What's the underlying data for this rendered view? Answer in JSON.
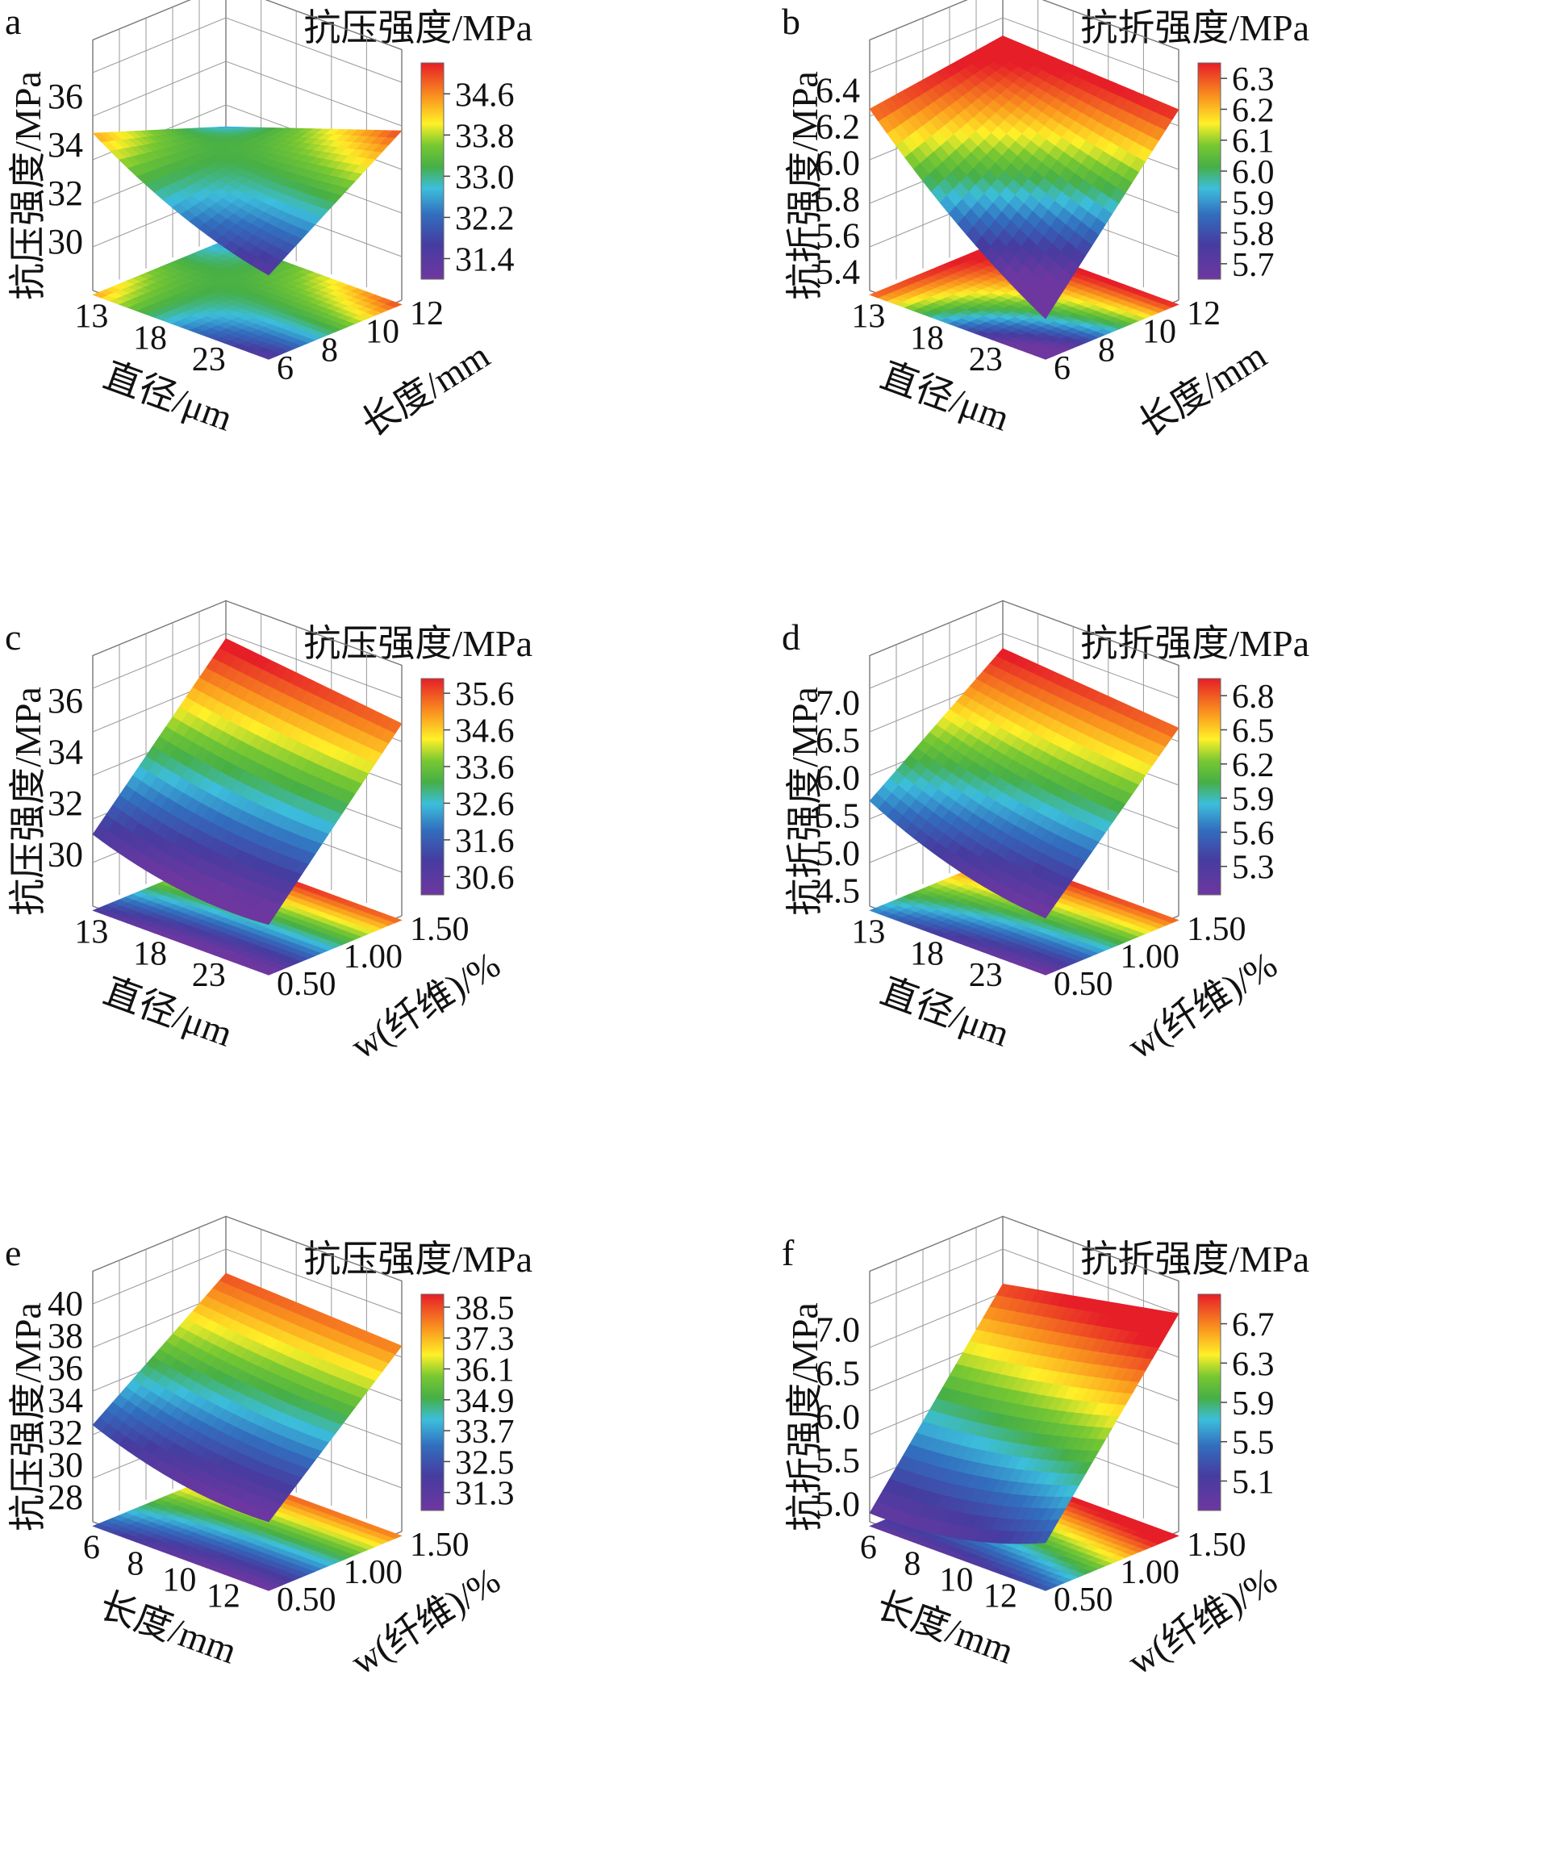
{
  "chart_data": [
    {
      "type": "surface3d",
      "panel_label": "a",
      "title": "抗压强度/MPa",
      "zlabel": "抗压强度/MPa",
      "xlabel": "直径/μm",
      "ylabel": "长度/mm",
      "x_ticks": [
        "13",
        "18",
        "23"
      ],
      "y_ticks": [
        "6",
        "8",
        "10",
        "12"
      ],
      "z_ticks": [
        "30",
        "32",
        "34",
        "36"
      ],
      "colorbar_ticks": [
        "34.6",
        "33.8",
        "33.0",
        "32.2",
        "31.4"
      ],
      "xlim": [
        13,
        25
      ],
      "ylim": [
        6,
        12
      ],
      "zlim": [
        28,
        37
      ],
      "colorbar_range": [
        31.0,
        35.2
      ],
      "surface_corners": {
        "x_min_y_min": 34.5,
        "x_max_y_min": 31.3,
        "x_min_y_max": 32.5,
        "x_max_y_max": 35.0
      }
    },
    {
      "type": "surface3d",
      "panel_label": "b",
      "title": "抗折强度/MPa",
      "zlabel": "抗折强度/MPa",
      "xlabel": "直径/μm",
      "ylabel": "长度/mm",
      "x_ticks": [
        "13",
        "18",
        "23"
      ],
      "y_ticks": [
        "6",
        "8",
        "10",
        "12"
      ],
      "z_ticks": [
        "5.4",
        "5.6",
        "5.8",
        "6.0",
        "6.2",
        "6.4"
      ],
      "colorbar_ticks": [
        "6.3",
        "6.2",
        "6.1",
        "6.0",
        "5.9",
        "5.8",
        "5.7"
      ],
      "xlim": [
        13,
        25
      ],
      "ylim": [
        6,
        12
      ],
      "zlim": [
        5.3,
        6.5
      ],
      "colorbar_range": [
        5.65,
        6.35
      ],
      "surface_corners": {
        "x_min_y_min": 6.3,
        "x_max_y_min": 5.5,
        "x_min_y_max": 6.4,
        "x_max_y_max": 6.35
      }
    },
    {
      "type": "surface3d",
      "panel_label": "c",
      "title": "抗压强度/MPa",
      "zlabel": "抗压强度/MPa",
      "xlabel": "直径/μm",
      "ylabel": "w(纤维)/%",
      "x_ticks": [
        "13",
        "18",
        "23"
      ],
      "y_ticks": [
        "0.50",
        "1.00",
        "1.50"
      ],
      "z_ticks": [
        "30",
        "32",
        "34",
        "36"
      ],
      "colorbar_ticks": [
        "35.6",
        "34.6",
        "33.6",
        "32.6",
        "31.6",
        "30.6"
      ],
      "xlim": [
        13,
        25
      ],
      "ylim": [
        0.5,
        1.5
      ],
      "zlim": [
        28,
        36.5
      ],
      "colorbar_range": [
        30.1,
        36.0
      ],
      "surface_corners": {
        "x_min_y_min": 30.8,
        "x_max_y_min": 29.8,
        "x_min_y_max": 36.3,
        "x_max_y_max": 35.5
      }
    },
    {
      "type": "surface3d",
      "panel_label": "d",
      "title": "抗折强度/MPa",
      "zlabel": "抗折强度/MPa",
      "xlabel": "直径/μm",
      "ylabel": "w(纤维)/%",
      "x_ticks": [
        "13",
        "18",
        "23"
      ],
      "y_ticks": [
        "0.50",
        "1.00",
        "1.50"
      ],
      "z_ticks": [
        "4.5",
        "5.0",
        "5.5",
        "6.0",
        "6.5",
        "7.0"
      ],
      "colorbar_ticks": [
        "6.8",
        "6.5",
        "6.2",
        "5.9",
        "5.6",
        "5.3"
      ],
      "xlim": [
        13,
        25
      ],
      "ylim": [
        0.5,
        1.5
      ],
      "zlim": [
        4.3,
        7.2
      ],
      "colorbar_range": [
        5.05,
        6.95
      ],
      "surface_corners": {
        "x_min_y_min": 5.7,
        "x_max_y_min": 5.0,
        "x_min_y_max": 7.0,
        "x_max_y_max": 6.8
      }
    },
    {
      "type": "surface3d",
      "panel_label": "e",
      "title": "抗压强度/MPa",
      "zlabel": "抗压强度/MPa",
      "xlabel": "长度/mm",
      "ylabel": "w(纤维)/%",
      "x_ticks": [
        "6",
        "8",
        "10",
        "12"
      ],
      "y_ticks": [
        "0.50",
        "1.00",
        "1.50"
      ],
      "z_ticks": [
        "28",
        "30",
        "32",
        "34",
        "36",
        "38",
        "40"
      ],
      "colorbar_ticks": [
        "38.5",
        "37.3",
        "36.1",
        "34.9",
        "33.7",
        "32.5",
        "31.3"
      ],
      "xlim": [
        6,
        12
      ],
      "ylim": [
        0.5,
        1.5
      ],
      "zlim": [
        26.5,
        40
      ],
      "colorbar_range": [
        30.6,
        39.0
      ],
      "surface_corners": {
        "x_min_y_min": 32.5,
        "x_max_y_min": 30.5,
        "x_min_y_max": 38.5,
        "x_max_y_max": 38.0
      }
    },
    {
      "type": "surface3d",
      "panel_label": "f",
      "title": "抗折强度/MPa",
      "zlabel": "抗折强度/MPa",
      "xlabel": "长度/mm",
      "ylabel": "w(纤维)/%",
      "x_ticks": [
        "6",
        "8",
        "10",
        "12"
      ],
      "y_ticks": [
        "0.50",
        "1.00",
        "1.50"
      ],
      "z_ticks": [
        "5.0",
        "5.5",
        "6.0",
        "6.5",
        "7.0"
      ],
      "colorbar_ticks": [
        "6.7",
        "6.3",
        "5.9",
        "5.5",
        "5.1"
      ],
      "xlim": [
        6,
        12
      ],
      "ylim": [
        0.5,
        1.5
      ],
      "zlim": [
        4.8,
        7.3
      ],
      "colorbar_range": [
        4.8,
        7.0
      ],
      "surface_corners": {
        "x_min_y_min": 4.9,
        "x_max_y_min": 5.3,
        "x_min_y_max": 6.9,
        "x_max_y_max": 7.3
      }
    }
  ]
}
